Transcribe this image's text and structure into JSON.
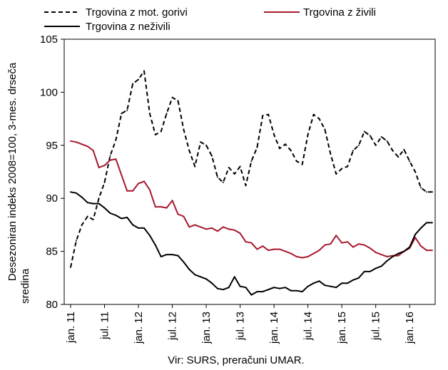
{
  "chart_data": {
    "type": "line",
    "title": "",
    "ylabel_lines": [
      "Desezoniran indeks 2008=100, 3-mes. drseča",
      "sredina"
    ],
    "xlabel": "",
    "ylim": [
      80,
      105
    ],
    "yticks": [
      80,
      85,
      90,
      95,
      100,
      105
    ],
    "grid": false,
    "legend": "top",
    "source": "Vir: SURS, preračuni UMAR.",
    "x_tick_labels": [
      "jan. 11",
      "jul. 11",
      "jan. 12",
      "jul. 12",
      "jan. 13",
      "jul. 13",
      "jan. 14",
      "jul. 14",
      "jan. 15",
      "jul. 15",
      "jan. 16"
    ],
    "x": [
      "2011-01",
      "2011-02",
      "2011-03",
      "2011-04",
      "2011-05",
      "2011-06",
      "2011-07",
      "2011-08",
      "2011-09",
      "2011-10",
      "2011-11",
      "2011-12",
      "2012-01",
      "2012-02",
      "2012-03",
      "2012-04",
      "2012-05",
      "2012-06",
      "2012-07",
      "2012-08",
      "2012-09",
      "2012-10",
      "2012-11",
      "2012-12",
      "2013-01",
      "2013-02",
      "2013-03",
      "2013-04",
      "2013-05",
      "2013-06",
      "2013-07",
      "2013-08",
      "2013-09",
      "2013-10",
      "2013-11",
      "2013-12",
      "2014-01",
      "2014-02",
      "2014-03",
      "2014-04",
      "2014-05",
      "2014-06",
      "2014-07",
      "2014-08",
      "2014-09",
      "2014-10",
      "2014-11",
      "2014-12",
      "2015-01",
      "2015-02",
      "2015-03",
      "2015-04",
      "2015-05",
      "2015-06",
      "2015-07",
      "2015-08",
      "2015-09",
      "2015-10",
      "2015-11",
      "2015-12",
      "2016-01",
      "2016-02",
      "2016-03",
      "2016-04",
      "2016-05"
    ],
    "series": [
      {
        "name": "Trgovina z mot. gorivi",
        "color": "#000000",
        "style": "dashed",
        "values": [
          83.5,
          86.0,
          87.5,
          88.3,
          88.0,
          90.0,
          91.5,
          94.0,
          95.5,
          98.0,
          98.3,
          100.8,
          101.2,
          102.0,
          98.0,
          96.0,
          96.3,
          98.0,
          99.5,
          99.2,
          96.5,
          94.5,
          93.0,
          95.3,
          95.0,
          94.0,
          92.0,
          91.5,
          92.9,
          92.3,
          93.0,
          91.2,
          93.5,
          94.8,
          97.8,
          97.9,
          96.0,
          94.7,
          95.1,
          94.5,
          93.5,
          93.2,
          96.0,
          97.9,
          97.5,
          96.5,
          94.2,
          92.3,
          92.8,
          93.0,
          94.5,
          95.0,
          96.3,
          95.9,
          95.0,
          95.8,
          95.4,
          94.5,
          93.9,
          94.6,
          93.5,
          92.5,
          91.0,
          90.6,
          90.6
        ]
      },
      {
        "name": "Trgovina z živili",
        "color": "#a6192e",
        "style": "solid",
        "values": [
          95.4,
          95.3,
          95.1,
          94.9,
          94.5,
          92.9,
          93.1,
          93.6,
          93.7,
          92.2,
          90.7,
          90.7,
          91.4,
          91.6,
          90.8,
          89.2,
          89.2,
          89.1,
          89.8,
          88.5,
          88.3,
          87.3,
          87.5,
          87.3,
          87.1,
          87.2,
          86.9,
          87.3,
          87.1,
          87.0,
          86.7,
          85.9,
          85.8,
          85.2,
          85.5,
          85.1,
          85.2,
          85.2,
          85.0,
          84.8,
          84.5,
          84.4,
          84.5,
          84.8,
          85.1,
          85.6,
          85.7,
          86.5,
          85.8,
          85.9,
          85.4,
          85.7,
          85.6,
          85.3,
          84.9,
          84.7,
          84.5,
          84.6,
          84.6,
          85.0,
          85.3,
          86.3,
          85.5,
          85.1,
          85.1
        ]
      },
      {
        "name": "Trgovina z neživili",
        "color": "#000000",
        "style": "solid",
        "values": [
          90.6,
          90.5,
          90.1,
          89.6,
          89.5,
          89.5,
          89.1,
          88.6,
          88.4,
          88.1,
          88.2,
          87.5,
          87.2,
          87.2,
          86.5,
          85.6,
          84.5,
          84.7,
          84.7,
          84.6,
          84.0,
          83.3,
          82.8,
          82.6,
          82.4,
          82.0,
          81.5,
          81.4,
          81.6,
          82.6,
          81.7,
          81.6,
          80.9,
          81.2,
          81.2,
          81.4,
          81.6,
          81.5,
          81.6,
          81.3,
          81.3,
          81.2,
          81.7,
          82.0,
          82.2,
          81.8,
          81.7,
          81.6,
          82.0,
          82.0,
          82.3,
          82.5,
          83.1,
          83.1,
          83.4,
          83.6,
          84.1,
          84.5,
          84.8,
          85.0,
          85.4,
          86.6,
          87.2,
          87.7,
          87.7
        ]
      }
    ]
  }
}
